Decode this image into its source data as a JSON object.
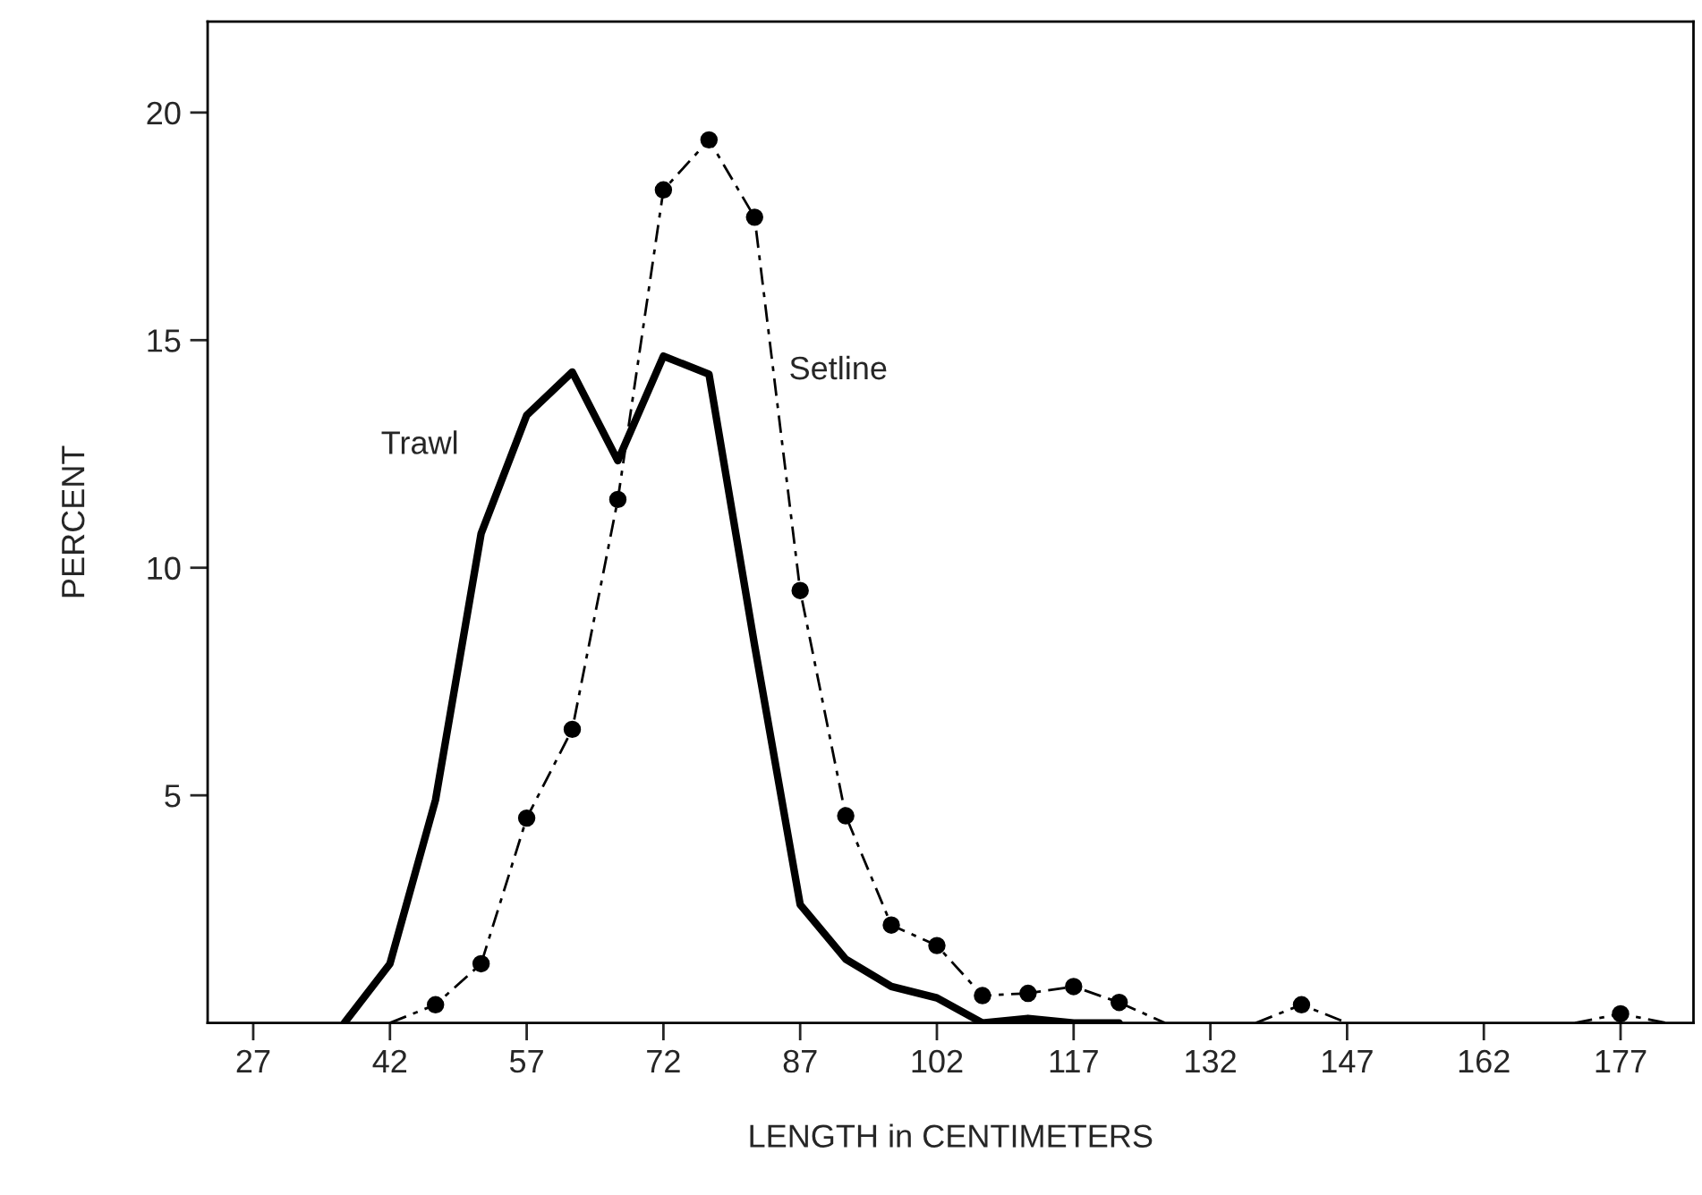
{
  "chart_data": {
    "type": "line",
    "xlabel": "LENGTH in CENTIMETERS",
    "ylabel": "PERCENT",
    "xlim": [
      22,
      185
    ],
    "xticks": [
      27,
      42,
      57,
      72,
      87,
      102,
      117,
      132,
      147,
      162,
      177
    ],
    "ylim": [
      0,
      22
    ],
    "yticks": [
      5,
      10,
      15,
      20
    ],
    "grid": false,
    "legend": false,
    "series": [
      {
        "name": "Trawl",
        "color": "#000000",
        "line_style": "solid",
        "marker": "none",
        "x": [
          37,
          42,
          47,
          52,
          57,
          62,
          67,
          72,
          77,
          82,
          87,
          92,
          97,
          102,
          107,
          112,
          117,
          122
        ],
        "values": [
          0,
          1.3,
          4.9,
          10.75,
          13.35,
          14.3,
          12.35,
          14.65,
          14.25,
          8.3,
          2.6,
          1.4,
          0.8,
          0.55,
          0,
          0.1,
          0,
          0
        ]
      },
      {
        "name": "Setline",
        "color": "#000000",
        "line_style": "dashed",
        "marker": "circle",
        "x": [
          42,
          47,
          52,
          57,
          62,
          67,
          72,
          77,
          82,
          87,
          92,
          97,
          102,
          107,
          112,
          117,
          122,
          127,
          132,
          137,
          142,
          147,
          152,
          167,
          172,
          177,
          182
        ],
        "values": [
          0,
          0.4,
          1.3,
          4.5,
          6.45,
          11.5,
          18.3,
          19.4,
          17.7,
          9.5,
          4.55,
          2.15,
          1.7,
          0.6,
          0.65,
          0.8,
          0.45,
          0,
          null,
          0,
          0.4,
          0,
          null,
          null,
          0,
          0.2,
          0
        ]
      }
    ]
  }
}
